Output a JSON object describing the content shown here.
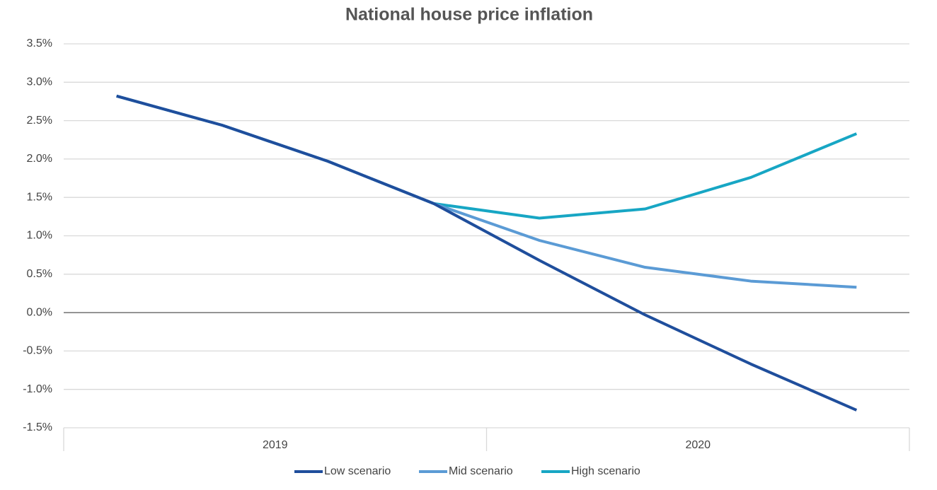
{
  "chart_data": {
    "type": "line",
    "title": "National house price inflation",
    "categories": [
      null,
      null,
      null,
      null,
      null,
      null,
      null,
      null
    ],
    "x_groups": [
      "2019",
      "2020"
    ],
    "series": [
      {
        "name": "Low scenario",
        "color": "#1f4e9c",
        "values": [
          2.82,
          2.44,
          1.97,
          1.42,
          0.68,
          -0.03,
          -0.67,
          -1.27
        ]
      },
      {
        "name": "Mid scenario",
        "color": "#5b9bd5",
        "values": [
          2.82,
          2.44,
          1.97,
          1.42,
          0.94,
          0.59,
          0.41,
          0.33
        ]
      },
      {
        "name": "High scenario",
        "color": "#17a6c4",
        "values": [
          2.82,
          2.44,
          1.97,
          1.42,
          1.23,
          1.35,
          1.76,
          2.33
        ]
      }
    ],
    "ylim": [
      -1.5,
      3.5
    ],
    "yticks": [
      {
        "value": -1.5,
        "label": "-1.5%"
      },
      {
        "value": -1.0,
        "label": "-1.0%"
      },
      {
        "value": -0.5,
        "label": "-0.5%"
      },
      {
        "value": 0,
        "label": "0.0%"
      },
      {
        "value": 0.5,
        "label": "0.5%"
      },
      {
        "value": 1.0,
        "label": "1.0%"
      },
      {
        "value": 1.5,
        "label": "1.5%"
      },
      {
        "value": 2.0,
        "label": "2.0%"
      },
      {
        "value": 2.5,
        "label": "2.5%"
      },
      {
        "value": 3.0,
        "label": "3.0%"
      },
      {
        "value": 3.5,
        "label": "3.5%"
      }
    ],
    "grid": true,
    "legend": "bottom"
  }
}
